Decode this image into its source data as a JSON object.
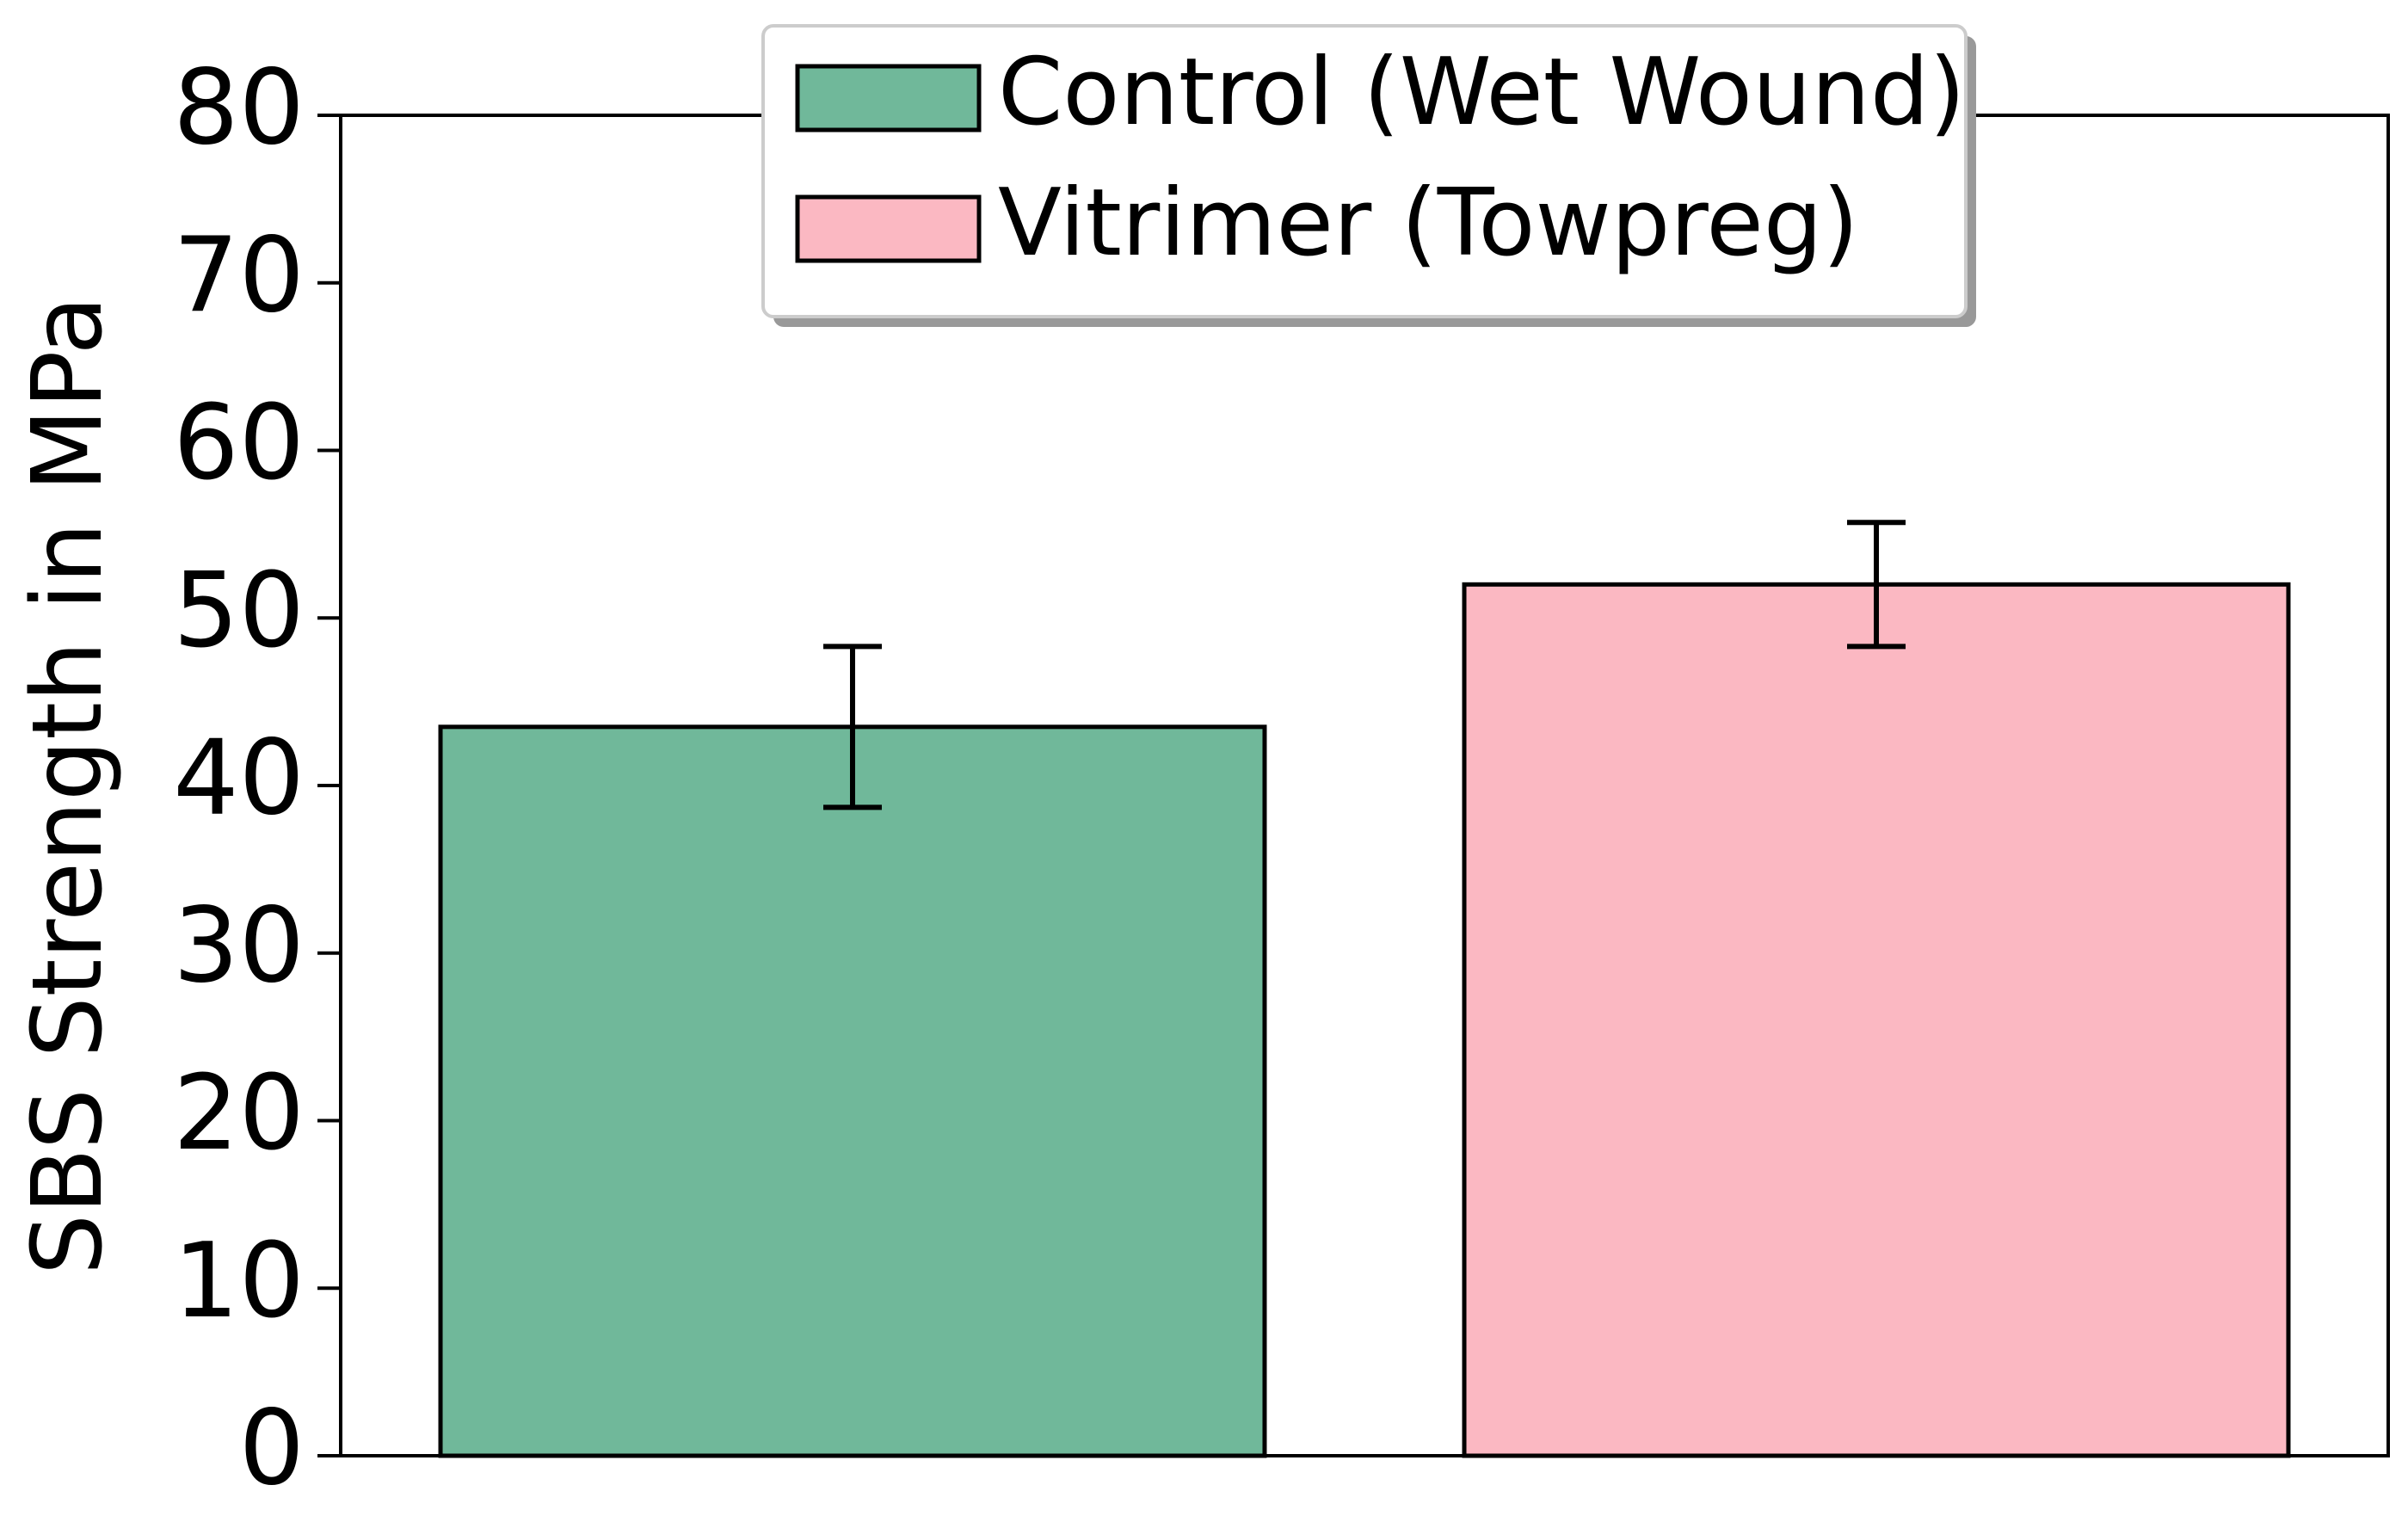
{
  "chart_data": {
    "type": "bar",
    "y_label": "SBS Strength in MPa",
    "series": [
      {
        "name": "Control (Wet Wound)",
        "color": "#70b89a",
        "values": [
          43.5
        ],
        "errors": [
          4.8
        ]
      },
      {
        "name": "Vitrimer (Towpreg)",
        "color": "#fbb8c2",
        "values": [
          52
        ],
        "errors": [
          3.7
        ]
      }
    ],
    "ylim": [
      0,
      80
    ],
    "yticks": [
      0,
      10,
      20,
      30,
      40,
      50,
      60,
      70,
      80
    ],
    "legend": "upper center"
  }
}
